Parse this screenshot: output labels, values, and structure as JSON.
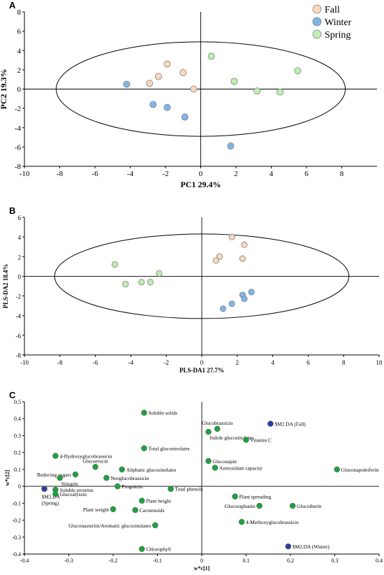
{
  "chart_data": [
    {
      "panel": "A",
      "type": "scatter",
      "xlabel": "PC1 29.4%",
      "ylabel": "PC2 19.3%",
      "xlim": [
        -10,
        10
      ],
      "ylim": [
        -8,
        8
      ],
      "xticks": [
        -10,
        -8,
        -6,
        -4,
        -2,
        0,
        2,
        4,
        6,
        8
      ],
      "yticks": [
        -8,
        -6,
        -4,
        -2,
        0,
        2,
        4,
        6,
        8
      ],
      "grid": false,
      "legend_position": "top-right",
      "ellipse": {
        "cx": 0,
        "cy": 0,
        "rx": 8.2,
        "ry": 4.9
      },
      "series": [
        {
          "name": "Fall",
          "color": "#f8d8bd",
          "points": [
            [
              -1.9,
              2.6
            ],
            [
              -2.4,
              1.3
            ],
            [
              -2.9,
              0.6
            ],
            [
              -1.0,
              1.7
            ],
            [
              -0.4,
              0.0
            ]
          ]
        },
        {
          "name": "Winter",
          "color": "#7fb6ea",
          "points": [
            [
              -4.2,
              0.5
            ],
            [
              -2.7,
              -1.6
            ],
            [
              -1.9,
              -1.9
            ],
            [
              -0.9,
              -2.9
            ],
            [
              1.7,
              -5.9
            ]
          ]
        },
        {
          "name": "Spring",
          "color": "#bfeeb0",
          "points": [
            [
              0.6,
              3.4
            ],
            [
              1.9,
              0.8
            ],
            [
              3.2,
              -0.2
            ],
            [
              4.5,
              -0.3
            ],
            [
              5.5,
              1.9
            ]
          ]
        }
      ]
    },
    {
      "panel": "B",
      "type": "scatter",
      "xlabel": "PLS-DA1 27.7%",
      "ylabel": "PLS-DA2 18.4%",
      "xlim": [
        -10,
        10
      ],
      "ylim": [
        -8,
        6
      ],
      "xticks": [
        -10,
        -8,
        -6,
        -4,
        -2,
        0,
        2,
        4,
        6,
        8,
        10
      ],
      "yticks": [
        -8,
        -6,
        -4,
        -2,
        0,
        2,
        4,
        6
      ],
      "grid": false,
      "ellipse": {
        "cx": 0,
        "cy": 0,
        "rx": 8.3,
        "ry": 4.3
      },
      "series": [
        {
          "name": "Fall",
          "color": "#f8d8bd",
          "points": [
            [
              1.7,
              4.0
            ],
            [
              2.4,
              3.2
            ],
            [
              1.0,
              2.0
            ],
            [
              0.8,
              1.6
            ],
            [
              2.3,
              1.8
            ]
          ]
        },
        {
          "name": "Winter",
          "color": "#7fb6ea",
          "points": [
            [
              2.8,
              -1.6
            ],
            [
              2.3,
              -1.9
            ],
            [
              2.4,
              -2.3
            ],
            [
              1.7,
              -2.8
            ],
            [
              1.2,
              -3.3
            ]
          ]
        },
        {
          "name": "Spring",
          "color": "#bfeeb0",
          "points": [
            [
              -4.9,
              1.2
            ],
            [
              -4.3,
              -0.8
            ],
            [
              -3.4,
              -0.6
            ],
            [
              -2.9,
              -0.6
            ],
            [
              -2.4,
              0.3
            ]
          ]
        }
      ]
    },
    {
      "panel": "C",
      "type": "scatter",
      "xlabel": "w*c[1]",
      "ylabel": "w*c[2]",
      "xlim": [
        -0.4,
        0.4
      ],
      "ylim": [
        -0.4,
        0.5
      ],
      "xticks": [
        -0.4,
        -0.3,
        -0.2,
        -0.1,
        0,
        0.1,
        0.2,
        0.3,
        0.4
      ],
      "yticks": [
        -0.4,
        -0.3,
        -0.2,
        -0.1,
        0,
        0.1,
        0.2,
        0.3,
        0.4,
        0.5
      ],
      "grid": false,
      "variable_color": "#20a040",
      "class_color": "#2a3f99",
      "points": [
        {
          "label": "Soluble solids",
          "x": -0.13,
          "y": 0.435,
          "kind": "variable",
          "pos": "right"
        },
        {
          "label": "Glucobrassicin",
          "x": 0.035,
          "y": 0.34,
          "kind": "variable",
          "pos": "above"
        },
        {
          "label": "$M2.DA (Fall)",
          "x": 0.155,
          "y": 0.37,
          "kind": "class",
          "pos": "right"
        },
        {
          "label": "Indole glucosinolates",
          "x": 0.015,
          "y": 0.322,
          "kind": "variable",
          "pos": "belowright"
        },
        {
          "label": "Vitamin C",
          "x": 0.1,
          "y": 0.275,
          "kind": "variable",
          "pos": "right"
        },
        {
          "label": "Total glucosinolates",
          "x": -0.13,
          "y": 0.225,
          "kind": "variable",
          "pos": "right"
        },
        {
          "label": "4-Hydroxyglucobrassicin",
          "x": -0.33,
          "y": 0.18,
          "kind": "variable",
          "pos": "right"
        },
        {
          "label": "Gluconapin",
          "x": 0.015,
          "y": 0.15,
          "kind": "variable",
          "pos": "right"
        },
        {
          "label": "Glucoerucin",
          "x": -0.24,
          "y": 0.115,
          "kind": "variable",
          "pos": "above"
        },
        {
          "label": "Aliphatic glucosinolates",
          "x": -0.18,
          "y": 0.1,
          "kind": "variable",
          "pos": "right"
        },
        {
          "label": "Antioxidant capacity",
          "x": 0.03,
          "y": 0.11,
          "kind": "variable",
          "pos": "right"
        },
        {
          "label": "Gluconapoleiferin",
          "x": 0.305,
          "y": 0.1,
          "kind": "variable",
          "pos": "right"
        },
        {
          "label": "Reducing sugars",
          "x": -0.285,
          "y": 0.07,
          "kind": "variable",
          "pos": "left"
        },
        {
          "label": "Neoglucobrassicin",
          "x": -0.215,
          "y": 0.05,
          "kind": "variable",
          "pos": "right"
        },
        {
          "label": "Sinigrin",
          "x": -0.32,
          "y": 0.05,
          "kind": "variable",
          "pos": "belowright"
        },
        {
          "label": "Progoitrin",
          "x": -0.19,
          "y": 0.0,
          "kind": "variable",
          "pos": "right"
        },
        {
          "label": "Total phenols",
          "x": -0.07,
          "y": -0.015,
          "kind": "variable",
          "pos": "right"
        },
        {
          "label": "$M2.DA (Spring)",
          "x": -0.355,
          "y": -0.015,
          "kind": "class",
          "pos": "below2"
        },
        {
          "label": "Soluble proteins",
          "x": -0.33,
          "y": -0.02,
          "kind": "variable",
          "pos": "right"
        },
        {
          "label": "Glucoalyssin",
          "x": -0.33,
          "y": -0.045,
          "kind": "variable",
          "pos": "right"
        },
        {
          "label": "Plant spreading",
          "x": 0.075,
          "y": -0.06,
          "kind": "variable",
          "pos": "right"
        },
        {
          "label": "Plant height",
          "x": -0.135,
          "y": -0.085,
          "kind": "variable",
          "pos": "right"
        },
        {
          "label": "Glucoraphanin",
          "x": 0.13,
          "y": -0.115,
          "kind": "variable",
          "pos": "left"
        },
        {
          "label": "Glucoiberin",
          "x": 0.205,
          "y": -0.115,
          "kind": "variable",
          "pos": "right"
        },
        {
          "label": "Plant weight",
          "x": -0.2,
          "y": -0.135,
          "kind": "variable",
          "pos": "left"
        },
        {
          "label": "Carotenoids",
          "x": -0.15,
          "y": -0.14,
          "kind": "variable",
          "pos": "right"
        },
        {
          "label": "4-Methoxyglucobrassicin",
          "x": 0.09,
          "y": -0.21,
          "kind": "variable",
          "pos": "right"
        },
        {
          "label": "Gluconasturiin/Aromatic glucosinolates",
          "x": -0.105,
          "y": -0.23,
          "kind": "variable",
          "pos": "left"
        },
        {
          "label": "$M2.DA (Winter)",
          "x": 0.195,
          "y": -0.355,
          "kind": "class",
          "pos": "right"
        },
        {
          "label": "Chlorophyll",
          "x": -0.135,
          "y": -0.37,
          "kind": "variable",
          "pos": "right"
        }
      ]
    }
  ]
}
